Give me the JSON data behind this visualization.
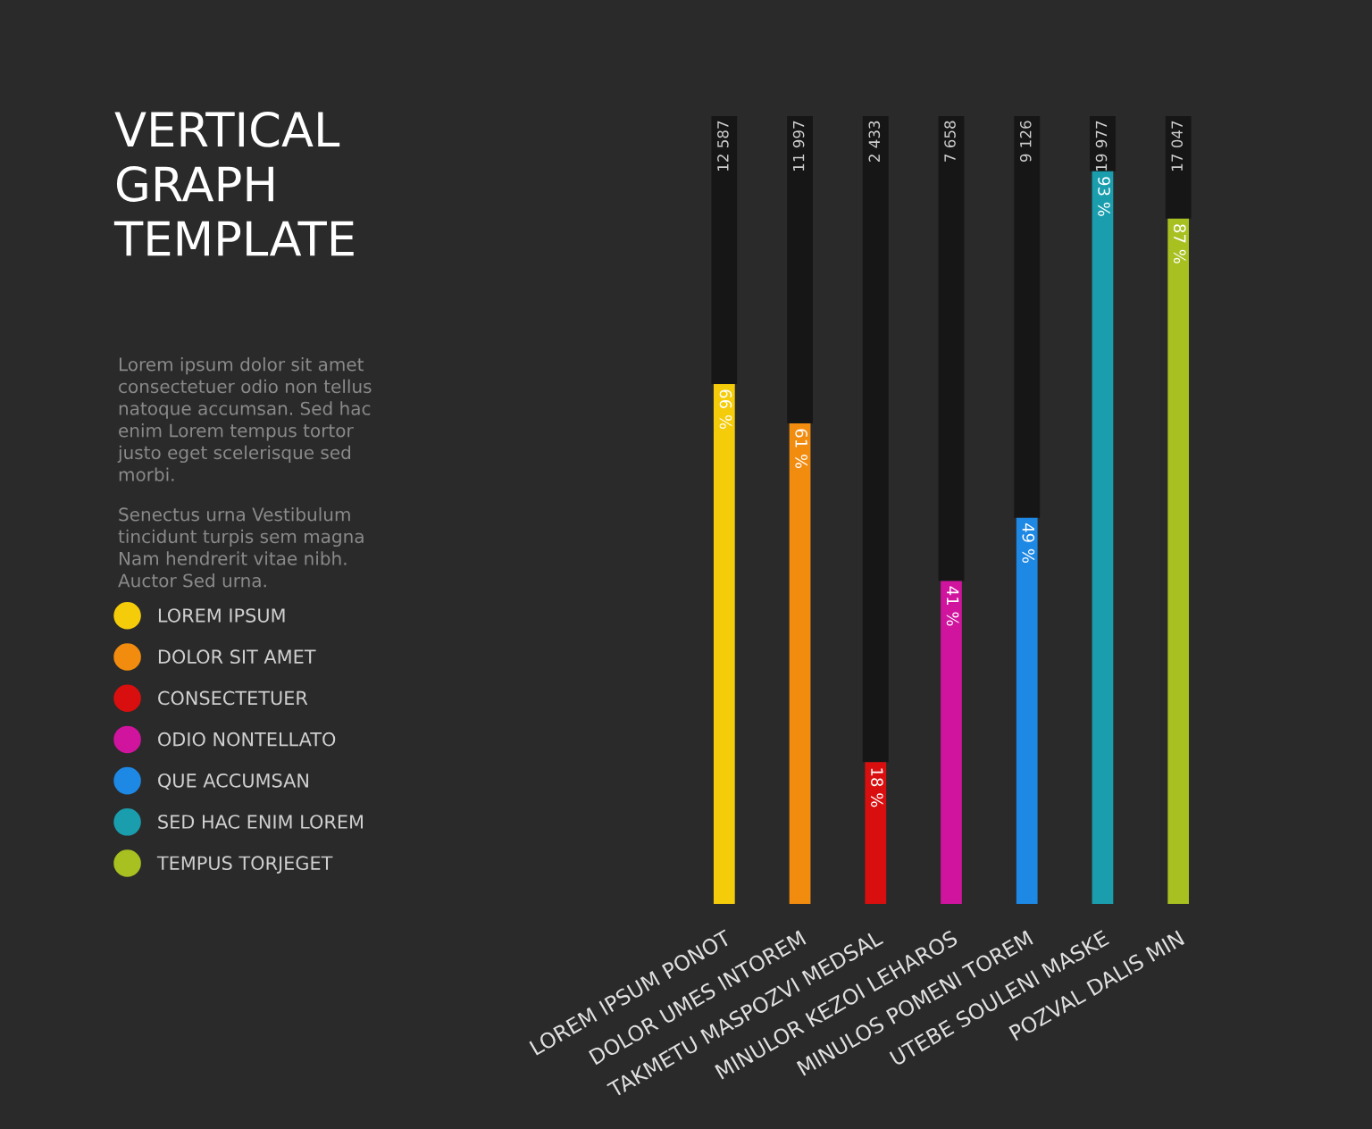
{
  "chart_data": {
    "type": "bar",
    "title": "VERTICAL\nGRAPH\nTEMPLATE",
    "annotations": [
      {
        "text": "12 587",
        "x": "LOREM IPSUM PONOT",
        "y": 100
      },
      {
        "text": "11 997",
        "x": "DOLOR UMES INTOREM",
        "y": 100
      },
      {
        "text": "2 433",
        "x": "TAKMETU MASPOZVI MEDSAL",
        "y": 100
      },
      {
        "text": "7 658",
        "x": "MINULOR KEZOI LEHAROS",
        "y": 100
      },
      {
        "text": "9 126",
        "x": "MINULOS POMENI TOREM",
        "y": 100
      },
      {
        "text": "19 977",
        "x": "UTEBE SOULENI MASKE",
        "y": 100
      },
      {
        "text": "17 047",
        "x": "POZVAL DALIS MIN",
        "y": 100
      },
      "Lorem ipsum dolor sit amet\nconsectetuer odio non tellus\nnatoque accumsan. Sed hac\nenim Lorem tempus tortor\njusto eget scelerisque sed\nmorbi.",
      "Senectus urna Vestibulum\ntincidunt turpis sem magna\nNam hendrerit vitae nibh.\nAuctor Sed urna."
    ],
    "categories": [
      "LOREM IPSUM PONOT",
      "DOLOR UMES INTOREM",
      "TAKMETU MASPOZVI MEDSAL",
      "MINULOR KEZOI LEHAROS",
      "MINULOS POMENI TOREM",
      "UTEBE SOULENI MASKE",
      "POZVAL DALIS MIN"
    ],
    "stacked": true,
    "ylim": [
      0,
      100
    ],
    "tick_labels": "x",
    "legend": "left",
    "marker": "circle",
    "series": [
      {
        "name": "LOREM IPSUM",
        "color": "#f5cc0a",
        "values": [
          66,
          null,
          null,
          null,
          null,
          null,
          null
        ],
        "value_labels": [
          "66 %",
          null,
          null,
          null,
          null,
          null,
          null
        ]
      },
      {
        "name": "DOLOR SIT AMET",
        "color": "#f28c0f",
        "values": [
          null,
          61,
          null,
          null,
          null,
          null,
          null
        ],
        "value_labels": [
          null,
          "61 %",
          null,
          null,
          null,
          null,
          null
        ]
      },
      {
        "name": "CONSECTETUER",
        "color": "#d90f0f",
        "values": [
          null,
          null,
          18,
          null,
          null,
          null,
          null
        ],
        "value_labels": [
          null,
          null,
          "18 %",
          null,
          null,
          null,
          null
        ]
      },
      {
        "name": "ODIO NONTELLATO",
        "color": "#d0149e",
        "values": [
          null,
          null,
          null,
          41,
          null,
          null,
          null
        ],
        "value_labels": [
          null,
          null,
          null,
          "41 %",
          null,
          null,
          null
        ]
      },
      {
        "name": "QUE ACCUMSAN",
        "color": "#1e88e5",
        "values": [
          null,
          null,
          null,
          null,
          49,
          null,
          null
        ],
        "value_labels": [
          null,
          null,
          null,
          null,
          "49 %",
          null,
          null
        ]
      },
      {
        "name": "SED HAC ENIM LOREM",
        "color": "#1a9eae",
        "values": [
          null,
          null,
          null,
          null,
          null,
          93,
          null
        ],
        "value_labels": [
          null,
          null,
          null,
          null,
          null,
          "93 %",
          null
        ]
      },
      {
        "name": "TEMPUS TORJEGET",
        "color": "#a8c020",
        "values": [
          null,
          null,
          null,
          null,
          null,
          null,
          87
        ],
        "value_labels": [
          null,
          null,
          null,
          null,
          null,
          null,
          "87 %"
        ]
      },
      {
        "color": "#161616",
        "values": [
          34,
          39,
          82,
          59,
          51,
          7,
          13
        ]
      }
    ]
  }
}
